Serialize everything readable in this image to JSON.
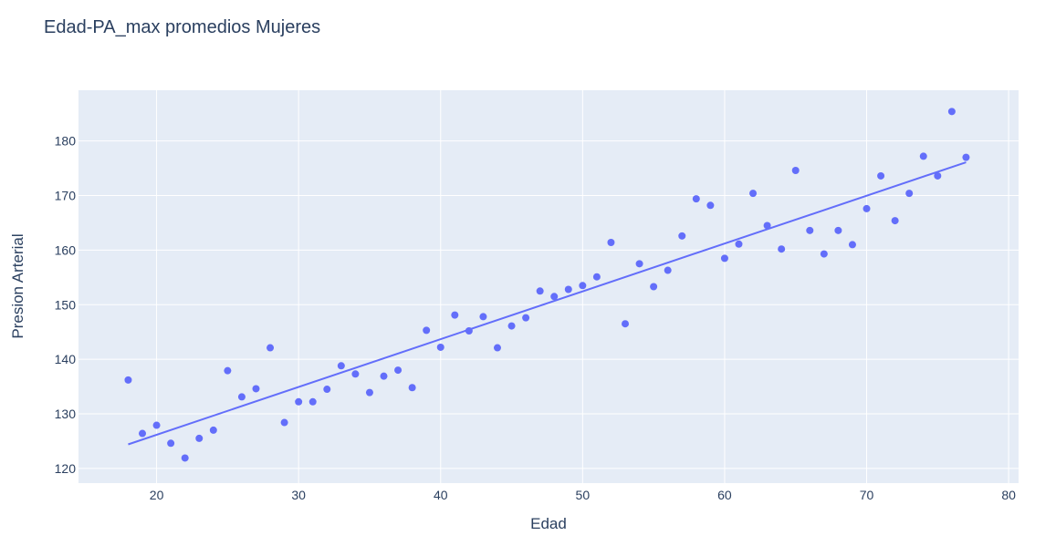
{
  "chart_data": {
    "type": "scatter",
    "title": "Edad-PA_max promedios Mujeres",
    "xlabel": "Edad",
    "ylabel": "Presion Arterial",
    "xlim": [
      14.5,
      80.7
    ],
    "ylim": [
      117.3,
      189.3
    ],
    "x_ticks": [
      20,
      30,
      40,
      50,
      60,
      70,
      80
    ],
    "y_ticks": [
      120,
      130,
      140,
      150,
      160,
      170,
      180
    ],
    "grid": true,
    "colors": {
      "marker": "#636efa",
      "line": "#636efa",
      "plot_bg": "#e5ecf6",
      "grid": "#ffffff",
      "text": "#2a3f5f"
    },
    "series": [
      {
        "type": "scatter",
        "x": [
          18,
          19,
          20,
          21,
          22,
          23,
          24,
          25,
          26,
          27,
          28,
          29,
          30,
          31,
          32,
          33,
          34,
          35,
          36,
          37,
          38,
          39,
          40,
          41,
          42,
          43,
          44,
          45,
          46,
          47,
          48,
          49,
          50,
          51,
          52,
          53,
          54,
          55,
          56,
          57,
          58,
          59,
          60,
          61,
          62,
          63,
          64,
          65,
          66,
          67,
          68,
          69,
          70,
          71,
          72,
          73,
          74,
          75,
          76,
          77
        ],
        "y": [
          136.2,
          126.4,
          127.9,
          124.6,
          121.9,
          125.5,
          127.0,
          137.9,
          133.1,
          134.6,
          142.1,
          128.4,
          132.2,
          132.2,
          134.5,
          138.8,
          137.3,
          133.9,
          136.9,
          138.0,
          134.8,
          145.3,
          142.2,
          148.1,
          145.2,
          147.8,
          142.1,
          146.1,
          147.6,
          152.5,
          151.5,
          152.8,
          153.5,
          155.1,
          161.4,
          146.5,
          157.5,
          153.3,
          156.3,
          162.6,
          169.4,
          168.2,
          158.5,
          161.1,
          170.4,
          164.5,
          160.2,
          174.6,
          163.6,
          159.3,
          163.6,
          161.0,
          167.6,
          173.6,
          165.4,
          170.4,
          177.2,
          173.6,
          185.4,
          177.0
        ]
      },
      {
        "type": "line",
        "x": [
          18,
          77
        ],
        "y": [
          124.4,
          176.1
        ]
      }
    ]
  }
}
